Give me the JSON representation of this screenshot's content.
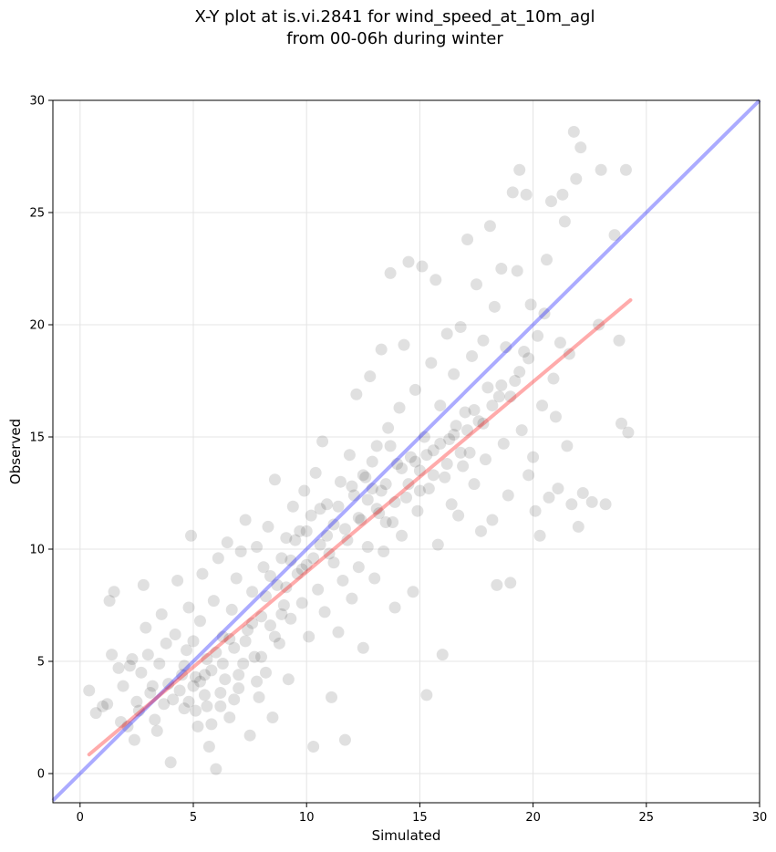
{
  "chart_data": {
    "type": "scatter",
    "title_lines": [
      "X-Y plot at is.vi.2841 for wind_speed_at_10m_agl",
      "from 00-06h during winter"
    ],
    "xlabel": "Simulated",
    "ylabel": "Observed",
    "xlim": [
      -1.2,
      30
    ],
    "ylim": [
      -1.3,
      30
    ],
    "xticks": [
      0,
      5,
      10,
      15,
      20,
      25,
      30
    ],
    "yticks": [
      0,
      5,
      10,
      15,
      20,
      25,
      30
    ],
    "grid": true,
    "colors": {
      "points": "#000000",
      "identity_line": "#0000ff",
      "fit_line": "#ff0000"
    },
    "identity_line": {
      "x": [
        -1.2,
        30
      ],
      "y": [
        -1.2,
        30
      ]
    },
    "fit_line": {
      "x": [
        0.4,
        24.3
      ],
      "y": [
        0.85,
        21.1
      ]
    },
    "points": [
      [
        0.4,
        3.7
      ],
      [
        0.7,
        2.7
      ],
      [
        1.2,
        3.1
      ],
      [
        1.3,
        7.7
      ],
      [
        1.5,
        8.1
      ],
      [
        1.4,
        5.3
      ],
      [
        1.7,
        4.7
      ],
      [
        1.9,
        3.9
      ],
      [
        2.1,
        2.1
      ],
      [
        2.3,
        5.1
      ],
      [
        2.4,
        1.5
      ],
      [
        2.7,
        4.5
      ],
      [
        2.8,
        8.4
      ],
      [
        2.9,
        6.5
      ],
      [
        3.1,
        3.6
      ],
      [
        3.3,
        2.4
      ],
      [
        3.5,
        4.9
      ],
      [
        3.6,
        7.1
      ],
      [
        3.8,
        5.8
      ],
      [
        4.0,
        0.5
      ],
      [
        4.1,
        3.3
      ],
      [
        4.2,
        6.2
      ],
      [
        4.3,
        8.6
      ],
      [
        4.5,
        4.4
      ],
      [
        4.6,
        2.9
      ],
      [
        4.7,
        5.5
      ],
      [
        4.8,
        7.4
      ],
      [
        4.9,
        10.6
      ],
      [
        5.0,
        3.9
      ],
      [
        5.1,
        4.3
      ],
      [
        5.2,
        2.1
      ],
      [
        5.3,
        6.8
      ],
      [
        5.4,
        8.9
      ],
      [
        5.5,
        3.5
      ],
      [
        5.6,
        5.1
      ],
      [
        5.7,
        1.2
      ],
      [
        5.8,
        4.6
      ],
      [
        5.9,
        7.7
      ],
      [
        6.0,
        0.2
      ],
      [
        6.1,
        9.6
      ],
      [
        6.2,
        3.0
      ],
      [
        6.3,
        6.1
      ],
      [
        6.4,
        4.2
      ],
      [
        6.5,
        10.3
      ],
      [
        6.6,
        2.5
      ],
      [
        6.7,
        7.3
      ],
      [
        6.8,
        5.6
      ],
      [
        6.9,
        8.7
      ],
      [
        7.0,
        3.8
      ],
      [
        7.1,
        9.9
      ],
      [
        7.2,
        4.9
      ],
      [
        7.3,
        11.3
      ],
      [
        7.4,
        6.4
      ],
      [
        7.5,
        1.7
      ],
      [
        7.6,
        8.1
      ],
      [
        7.7,
        5.2
      ],
      [
        7.8,
        10.1
      ],
      [
        7.9,
        3.4
      ],
      [
        8.0,
        7.0
      ],
      [
        8.1,
        9.2
      ],
      [
        8.2,
        4.5
      ],
      [
        8.3,
        11.0
      ],
      [
        8.4,
        6.6
      ],
      [
        8.5,
        2.5
      ],
      [
        8.6,
        13.1
      ],
      [
        8.7,
        8.4
      ],
      [
        8.8,
        5.8
      ],
      [
        8.9,
        9.6
      ],
      [
        9.0,
        7.5
      ],
      [
        9.1,
        10.5
      ],
      [
        9.2,
        4.2
      ],
      [
        9.3,
        6.9
      ],
      [
        9.4,
        11.9
      ],
      [
        9.6,
        8.9
      ],
      [
        9.7,
        10.8
      ],
      [
        9.8,
        7.6
      ],
      [
        9.9,
        12.6
      ],
      [
        10.0,
        9.3
      ],
      [
        10.1,
        6.1
      ],
      [
        10.2,
        11.5
      ],
      [
        10.3,
        1.2
      ],
      [
        10.4,
        13.4
      ],
      [
        10.5,
        8.2
      ],
      [
        10.6,
        10.2
      ],
      [
        10.7,
        14.8
      ],
      [
        10.8,
        7.2
      ],
      [
        10.9,
        12.0
      ],
      [
        11.0,
        9.8
      ],
      [
        11.1,
        3.4
      ],
      [
        11.2,
        11.1
      ],
      [
        11.4,
        6.3
      ],
      [
        11.5,
        13.0
      ],
      [
        11.6,
        8.6
      ],
      [
        11.7,
        1.5
      ],
      [
        11.8,
        10.4
      ],
      [
        11.9,
        14.2
      ],
      [
        12.0,
        7.8
      ],
      [
        12.1,
        12.4
      ],
      [
        12.2,
        16.9
      ],
      [
        12.3,
        9.2
      ],
      [
        12.4,
        11.3
      ],
      [
        12.5,
        5.6
      ],
      [
        12.6,
        13.2
      ],
      [
        12.7,
        10.1
      ],
      [
        12.8,
        17.7
      ],
      [
        12.9,
        12.7
      ],
      [
        13.0,
        8.7
      ],
      [
        13.1,
        14.6
      ],
      [
        13.2,
        11.6
      ],
      [
        13.3,
        18.9
      ],
      [
        13.4,
        9.9
      ],
      [
        13.5,
        12.9
      ],
      [
        13.6,
        15.4
      ],
      [
        13.7,
        22.3
      ],
      [
        13.8,
        11.2
      ],
      [
        13.9,
        7.4
      ],
      [
        14.0,
        13.8
      ],
      [
        14.1,
        16.3
      ],
      [
        14.2,
        10.6
      ],
      [
        14.3,
        19.1
      ],
      [
        14.4,
        12.3
      ],
      [
        14.5,
        22.8
      ],
      [
        14.6,
        14.1
      ],
      [
        14.7,
        8.1
      ],
      [
        14.8,
        17.1
      ],
      [
        14.9,
        11.7
      ],
      [
        15.0,
        13.5
      ],
      [
        15.1,
        22.6
      ],
      [
        15.2,
        15.0
      ],
      [
        15.3,
        3.5
      ],
      [
        15.4,
        12.7
      ],
      [
        15.5,
        18.3
      ],
      [
        15.6,
        14.4
      ],
      [
        15.7,
        22.0
      ],
      [
        15.8,
        10.2
      ],
      [
        15.9,
        16.4
      ],
      [
        16.0,
        5.3
      ],
      [
        16.1,
        13.2
      ],
      [
        16.2,
        19.6
      ],
      [
        16.3,
        14.9
      ],
      [
        16.4,
        12.0
      ],
      [
        16.5,
        17.8
      ],
      [
        16.6,
        15.5
      ],
      [
        16.7,
        11.5
      ],
      [
        16.8,
        19.9
      ],
      [
        16.9,
        13.7
      ],
      [
        17.0,
        16.1
      ],
      [
        17.1,
        23.8
      ],
      [
        17.2,
        14.3
      ],
      [
        17.3,
        18.6
      ],
      [
        17.4,
        12.9
      ],
      [
        17.5,
        21.8
      ],
      [
        17.6,
        15.7
      ],
      [
        17.7,
        10.8
      ],
      [
        17.8,
        19.3
      ],
      [
        17.9,
        14.0
      ],
      [
        18.0,
        17.2
      ],
      [
        18.1,
        24.4
      ],
      [
        18.2,
        11.3
      ],
      [
        18.3,
        20.8
      ],
      [
        18.4,
        8.4
      ],
      [
        18.5,
        16.8
      ],
      [
        18.6,
        22.5
      ],
      [
        18.7,
        14.7
      ],
      [
        18.8,
        19.0
      ],
      [
        18.9,
        12.4
      ],
      [
        19.0,
        8.5
      ],
      [
        19.1,
        25.9
      ],
      [
        19.2,
        17.5
      ],
      [
        19.3,
        22.4
      ],
      [
        19.4,
        26.9
      ],
      [
        19.5,
        15.3
      ],
      [
        19.6,
        18.8
      ],
      [
        19.7,
        25.8
      ],
      [
        19.8,
        13.3
      ],
      [
        19.9,
        20.9
      ],
      [
        20.0,
        14.1
      ],
      [
        20.1,
        11.7
      ],
      [
        20.2,
        19.5
      ],
      [
        20.3,
        10.6
      ],
      [
        20.4,
        16.4
      ],
      [
        20.5,
        20.5
      ],
      [
        20.6,
        22.9
      ],
      [
        20.7,
        12.3
      ],
      [
        20.8,
        25.5
      ],
      [
        20.9,
        17.6
      ],
      [
        21.0,
        15.9
      ],
      [
        21.1,
        12.7
      ],
      [
        21.2,
        19.2
      ],
      [
        21.3,
        25.8
      ],
      [
        21.4,
        24.6
      ],
      [
        21.5,
        14.6
      ],
      [
        21.6,
        18.7
      ],
      [
        21.7,
        12.0
      ],
      [
        21.8,
        28.6
      ],
      [
        21.9,
        26.5
      ],
      [
        22.0,
        11.0
      ],
      [
        22.1,
        27.9
      ],
      [
        22.2,
        12.5
      ],
      [
        22.6,
        12.1
      ],
      [
        22.9,
        20.0
      ],
      [
        23.0,
        26.9
      ],
      [
        23.2,
        12.0
      ],
      [
        23.6,
        24.0
      ],
      [
        23.8,
        19.3
      ],
      [
        23.9,
        15.6
      ],
      [
        24.1,
        26.9
      ],
      [
        24.2,
        15.2
      ],
      [
        1.0,
        3.0
      ],
      [
        1.8,
        2.3
      ],
      [
        2.2,
        4.8
      ],
      [
        2.5,
        3.2
      ],
      [
        2.6,
        2.8
      ],
      [
        3.0,
        5.3
      ],
      [
        3.2,
        3.9
      ],
      [
        3.4,
        1.9
      ],
      [
        3.7,
        3.1
      ],
      [
        3.9,
        4.0
      ],
      [
        4.4,
        3.7
      ],
      [
        4.6,
        4.8
      ],
      [
        4.8,
        3.2
      ],
      [
        5.0,
        5.9
      ],
      [
        5.1,
        2.8
      ],
      [
        5.3,
        4.1
      ],
      [
        5.5,
        4.4
      ],
      [
        5.6,
        3.0
      ],
      [
        5.8,
        2.2
      ],
      [
        6.0,
        5.4
      ],
      [
        6.2,
        3.6
      ],
      [
        6.3,
        4.9
      ],
      [
        6.6,
        6.0
      ],
      [
        6.8,
        3.3
      ],
      [
        7.0,
        4.4
      ],
      [
        7.3,
        5.9
      ],
      [
        7.6,
        6.7
      ],
      [
        7.8,
        4.1
      ],
      [
        8.0,
        5.2
      ],
      [
        8.2,
        7.9
      ],
      [
        8.4,
        8.8
      ],
      [
        8.6,
        6.1
      ],
      [
        8.9,
        7.1
      ],
      [
        9.1,
        8.3
      ],
      [
        9.3,
        9.5
      ],
      [
        9.5,
        10.4
      ],
      [
        9.8,
        9.1
      ],
      [
        10.0,
        10.8
      ],
      [
        10.3,
        9.6
      ],
      [
        10.6,
        11.8
      ],
      [
        10.9,
        10.6
      ],
      [
        11.2,
        9.4
      ],
      [
        11.4,
        11.9
      ],
      [
        11.7,
        10.9
      ],
      [
        12.0,
        12.8
      ],
      [
        12.3,
        11.4
      ],
      [
        12.5,
        13.3
      ],
      [
        12.7,
        12.2
      ],
      [
        12.9,
        13.9
      ],
      [
        13.1,
        11.8
      ],
      [
        13.3,
        12.6
      ],
      [
        13.5,
        11.2
      ],
      [
        13.7,
        14.6
      ],
      [
        13.9,
        12.1
      ],
      [
        14.2,
        13.6
      ],
      [
        14.5,
        12.9
      ],
      [
        14.8,
        13.9
      ],
      [
        15.0,
        12.6
      ],
      [
        15.3,
        14.2
      ],
      [
        15.6,
        13.3
      ],
      [
        15.9,
        14.7
      ],
      [
        16.2,
        13.8
      ],
      [
        16.5,
        15.1
      ],
      [
        16.8,
        14.3
      ],
      [
        17.1,
        15.3
      ],
      [
        17.4,
        16.2
      ],
      [
        17.8,
        15.6
      ],
      [
        18.2,
        16.4
      ],
      [
        18.6,
        17.3
      ],
      [
        19.0,
        16.8
      ],
      [
        19.4,
        17.9
      ],
      [
        19.8,
        18.5
      ]
    ]
  }
}
